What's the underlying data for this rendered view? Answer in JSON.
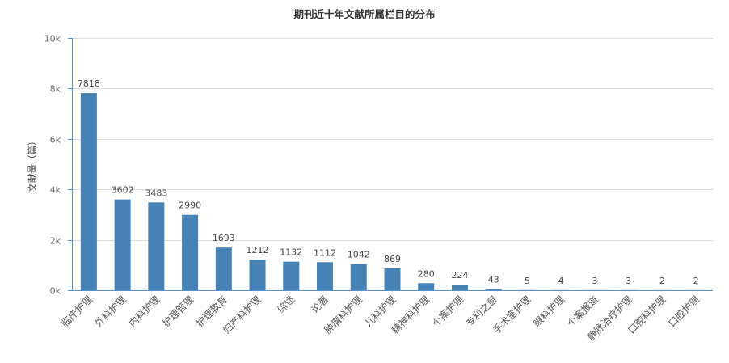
{
  "chart_data": {
    "type": "bar",
    "title": "期刊近十年文献所属栏目的分布",
    "xlabel": "",
    "ylabel": "文献量（篇）",
    "ylim": [
      0,
      10000
    ],
    "y_ticks": [
      "0k",
      "2k",
      "4k",
      "6k",
      "8k",
      "10k"
    ],
    "grid": true,
    "bar_color": "#4682b4",
    "categories": [
      "临床护理",
      "外科护理",
      "内科护理",
      "护理管理",
      "护理教育",
      "妇产科护理",
      "综述",
      "论著",
      "肿瘤科护理",
      "儿科护理",
      "精神科护理",
      "个案护理",
      "专利之窗",
      "手术室护理",
      "眼科护理",
      "个案报道",
      "静脉治疗护理",
      "口腔科护理",
      "口腔护理"
    ],
    "values": [
      7818,
      3602,
      3483,
      2990,
      1693,
      1212,
      1132,
      1112,
      1042,
      869,
      280,
      224,
      43,
      5,
      4,
      3,
      3,
      2,
      2
    ]
  }
}
